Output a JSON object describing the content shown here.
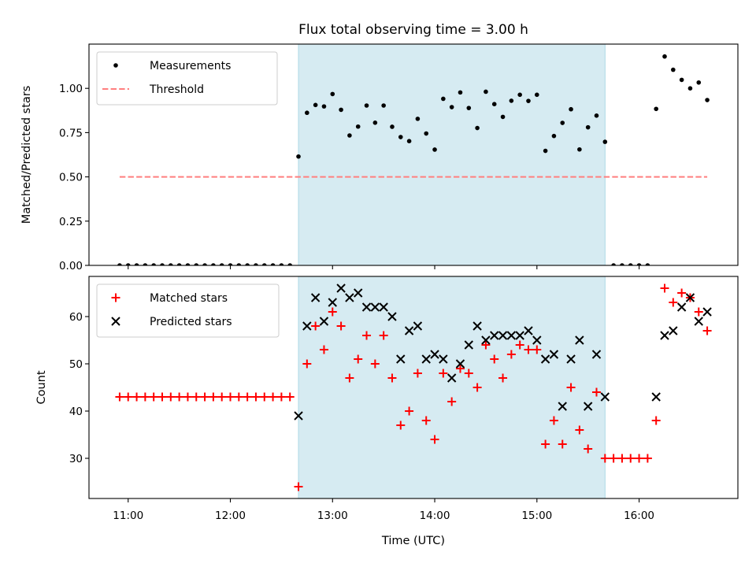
{
  "chart_data": {
    "type": "scatter",
    "title": "Flux total observing time = 3.00 h",
    "xlabel": "Time (UTC)",
    "x_unit": "hours (UTC)",
    "x_ticks": [
      11,
      12,
      13,
      14,
      15,
      16
    ],
    "x_tick_labels": [
      "11:00",
      "12:00",
      "13:00",
      "14:00",
      "15:00",
      "16:00"
    ],
    "xlim": [
      "10:37",
      "16:58"
    ],
    "highlight_span": {
      "start": "12:40",
      "end": "15:40",
      "color": "#add8e6"
    },
    "top_panel": {
      "ylabel": "Matched/Predicted stars",
      "ylim": [
        0,
        1.25
      ],
      "y_ticks": [
        0.0,
        0.25,
        0.5,
        0.75,
        1.0
      ],
      "y_tick_labels": [
        "0.00",
        "0.25",
        "0.50",
        "0.75",
        "1.00"
      ],
      "legend_location": "upper left",
      "series": [
        {
          "name": "Measurements",
          "marker": "dot",
          "color": "#000000",
          "x": [
            "10:55",
            "11:00",
            "11:05",
            "11:10",
            "11:15",
            "11:20",
            "11:25",
            "11:30",
            "11:35",
            "11:40",
            "11:45",
            "11:50",
            "11:55",
            "12:00",
            "12:05",
            "12:10",
            "12:15",
            "12:20",
            "12:25",
            "12:30",
            "12:35",
            "12:40",
            "12:45",
            "12:50",
            "12:55",
            "13:00",
            "13:05",
            "13:10",
            "13:15",
            "13:20",
            "13:25",
            "13:30",
            "13:35",
            "13:40",
            "13:45",
            "13:50",
            "13:55",
            "14:00",
            "14:05",
            "14:10",
            "14:15",
            "14:20",
            "14:25",
            "14:30",
            "14:35",
            "14:40",
            "14:45",
            "14:50",
            "14:55",
            "15:00",
            "15:05",
            "15:10",
            "15:15",
            "15:20",
            "15:25",
            "15:30",
            "15:35",
            "15:40",
            "15:45",
            "15:50",
            "15:55",
            "16:00",
            "16:05",
            "16:10",
            "16:15",
            "16:20",
            "16:25",
            "16:30",
            "16:35",
            "16:40"
          ],
          "y": [
            0,
            0,
            0,
            0,
            0,
            0,
            0,
            0,
            0,
            0,
            0,
            0,
            0,
            0,
            0,
            0,
            0,
            0,
            0,
            0,
            0,
            0.615,
            0.862,
            0.906,
            0.898,
            0.968,
            0.879,
            0.734,
            0.784,
            0.903,
            0.806,
            0.903,
            0.783,
            0.725,
            0.702,
            0.828,
            0.745,
            0.654,
            0.941,
            0.894,
            0.977,
            0.889,
            0.776,
            0.981,
            0.911,
            0.839,
            0.93,
            0.964,
            0.929,
            0.964,
            0.647,
            0.731,
            0.805,
            0.882,
            0.655,
            0.78,
            0.846,
            0.698,
            0,
            0,
            0,
            0,
            0,
            0.884,
            1.18,
            1.105,
            1.048,
            1.0,
            1.033,
            0.934
          ]
        },
        {
          "name": "Threshold",
          "style": "dashed line",
          "color": "#ff7f7f",
          "x": [
            "10:55",
            "16:40"
          ],
          "y": [
            0.5,
            0.5
          ]
        }
      ]
    },
    "bottom_panel": {
      "ylabel": "Count",
      "ylim": [
        21.5,
        68.5
      ],
      "y_ticks": [
        30,
        40,
        50,
        60
      ],
      "y_tick_labels": [
        "30",
        "40",
        "50",
        "60"
      ],
      "legend_location": "upper left",
      "series": [
        {
          "name": "Matched stars",
          "marker": "plus",
          "color": "#ff0000",
          "x": [
            "10:55",
            "11:00",
            "11:05",
            "11:10",
            "11:15",
            "11:20",
            "11:25",
            "11:30",
            "11:35",
            "11:40",
            "11:45",
            "11:50",
            "11:55",
            "12:00",
            "12:05",
            "12:10",
            "12:15",
            "12:20",
            "12:25",
            "12:30",
            "12:35",
            "12:40",
            "12:45",
            "12:50",
            "12:55",
            "13:00",
            "13:05",
            "13:10",
            "13:15",
            "13:20",
            "13:25",
            "13:30",
            "13:35",
            "13:40",
            "13:45",
            "13:50",
            "13:55",
            "14:00",
            "14:05",
            "14:10",
            "14:15",
            "14:20",
            "14:25",
            "14:30",
            "14:35",
            "14:40",
            "14:45",
            "14:50",
            "14:55",
            "15:00",
            "15:05",
            "15:10",
            "15:15",
            "15:20",
            "15:25",
            "15:30",
            "15:35",
            "15:40",
            "15:45",
            "15:50",
            "15:55",
            "16:00",
            "16:05",
            "16:10",
            "16:15",
            "16:20",
            "16:25",
            "16:30",
            "16:35",
            "16:40"
          ],
          "y": [
            43,
            43,
            43,
            43,
            43,
            43,
            43,
            43,
            43,
            43,
            43,
            43,
            43,
            43,
            43,
            43,
            43,
            43,
            43,
            43,
            43,
            24,
            50,
            58,
            53,
            61,
            58,
            47,
            51,
            56,
            50,
            56,
            47,
            37,
            40,
            48,
            38,
            34,
            48,
            42,
            49,
            48,
            45,
            54,
            51,
            47,
            52,
            54,
            53,
            53,
            33,
            38,
            33,
            45,
            36,
            32,
            44,
            30,
            30,
            30,
            30,
            30,
            30,
            38,
            66,
            63,
            65,
            64,
            61,
            57
          ]
        },
        {
          "name": "Predicted stars",
          "marker": "x",
          "color": "#000000",
          "x": [
            "12:40",
            "12:45",
            "12:50",
            "12:55",
            "13:00",
            "13:05",
            "13:10",
            "13:15",
            "13:20",
            "13:25",
            "13:30",
            "13:35",
            "13:40",
            "13:45",
            "13:50",
            "13:55",
            "14:00",
            "14:05",
            "14:10",
            "14:15",
            "14:20",
            "14:25",
            "14:30",
            "14:35",
            "14:40",
            "14:45",
            "14:50",
            "14:55",
            "15:00",
            "15:05",
            "15:10",
            "15:15",
            "15:20",
            "15:25",
            "15:30",
            "15:35",
            "15:40",
            "16:10",
            "16:15",
            "16:20",
            "16:25",
            "16:30",
            "16:35",
            "16:40"
          ],
          "y": [
            39,
            58,
            64,
            59,
            63,
            66,
            64,
            65,
            62,
            62,
            62,
            60,
            51,
            57,
            58,
            51,
            52,
            51,
            47,
            50,
            54,
            58,
            55,
            56,
            56,
            56,
            56,
            57,
            55,
            51,
            52,
            41,
            51,
            55,
            41,
            52,
            43,
            43,
            56,
            57,
            62,
            64,
            59,
            61
          ]
        }
      ]
    }
  }
}
